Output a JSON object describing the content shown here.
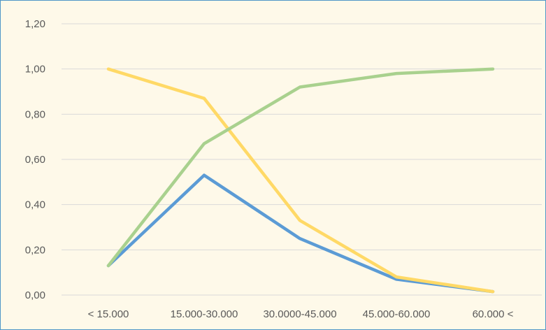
{
  "chart_data": {
    "type": "line",
    "title": "",
    "xlabel": "",
    "ylabel": "",
    "categories": [
      "< 15.000",
      "15.000-30.000",
      "30.0000-45.000",
      "45.000-60.000",
      "60.000 <"
    ],
    "ylim": [
      0,
      1.2
    ],
    "yticks": [
      "0,00",
      "0,20",
      "0,40",
      "0,60",
      "0,80",
      "1,00",
      "1,20"
    ],
    "ytick_values": [
      0,
      0.2,
      0.4,
      0.6,
      0.8,
      1.0,
      1.2
    ],
    "grid": true,
    "legend": "none",
    "series": [
      {
        "color": "#5b9bd5",
        "values": [
          0.13,
          0.53,
          0.25,
          0.07,
          0.015
        ]
      },
      {
        "color": "#ffd966",
        "values": [
          1.0,
          0.87,
          0.33,
          0.08,
          0.015
        ]
      },
      {
        "color": "#a9d18e",
        "values": [
          0.13,
          0.67,
          0.92,
          0.98,
          1.0
        ]
      }
    ],
    "background": "#fef9e9",
    "border_color": "#4f97c8",
    "gridline_color": "#d9d9d9"
  }
}
